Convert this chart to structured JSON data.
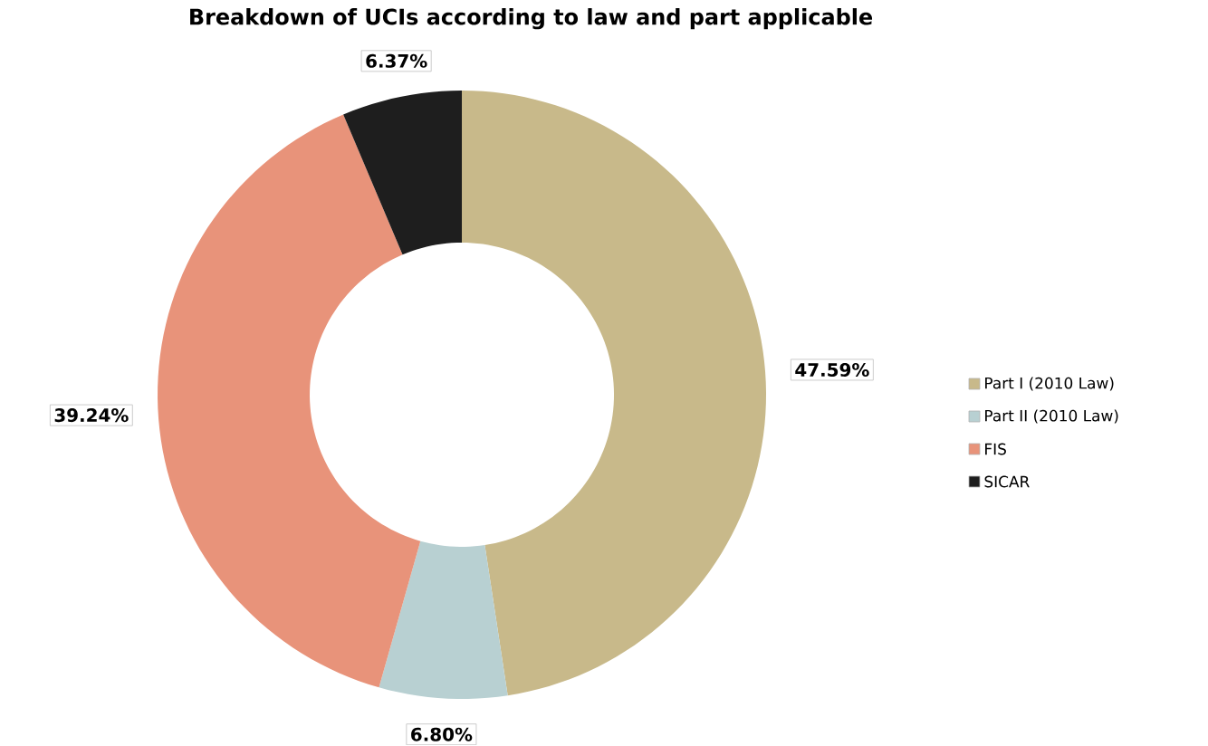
{
  "chart_data": {
    "type": "donut",
    "title": "Breakdown of UCIs according to law and part applicable",
    "categories": [
      "Part I (2010 Law)",
      "Part II (2010 Law)",
      "FIS",
      "SICAR"
    ],
    "values": [
      47.59,
      6.8,
      39.24,
      6.37
    ],
    "colors": [
      "#c8b98a",
      "#b8d0d2",
      "#e8937a",
      "#1e1e1e"
    ],
    "value_labels": [
      "47.59%",
      "6.80%",
      "39.24%",
      "6.37%"
    ],
    "legend": "right"
  }
}
